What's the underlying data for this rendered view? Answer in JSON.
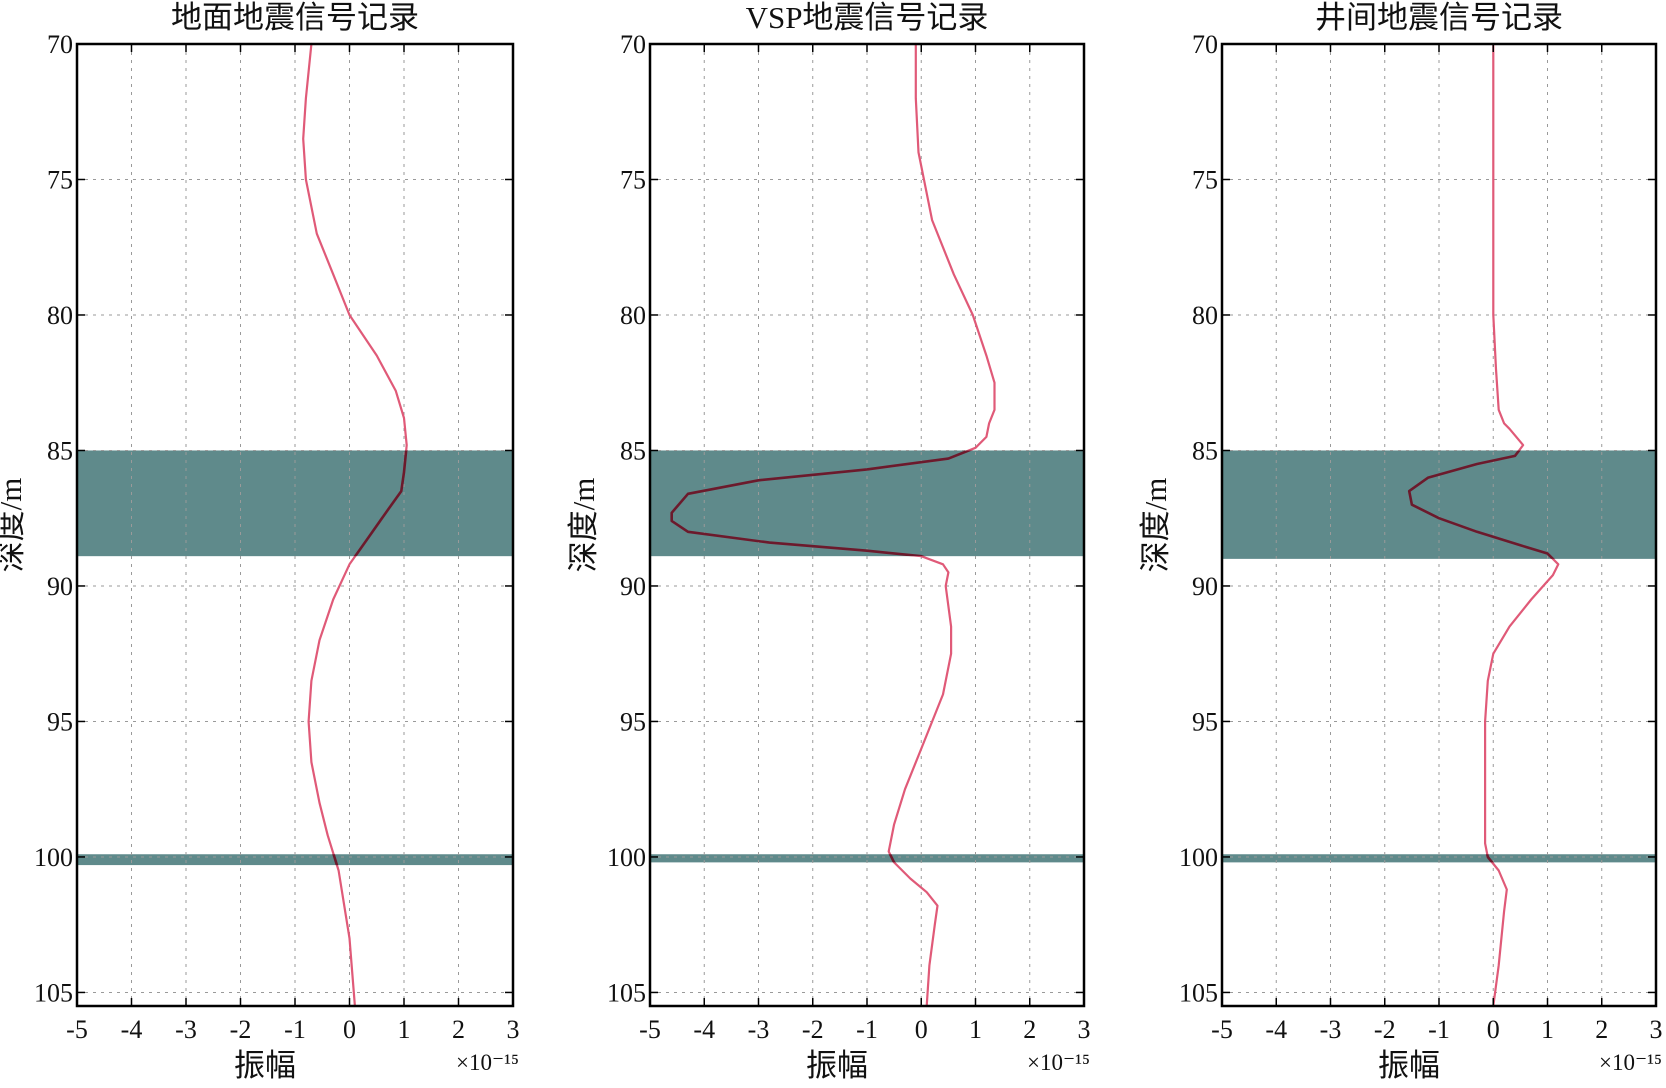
{
  "chart_data": [
    {
      "type": "line",
      "title": "地面地震信号记录",
      "xlabel": "振幅",
      "ylabel": "深度/m",
      "x_exponent_label": "×10⁻¹⁵",
      "xlim": [
        -5,
        3
      ],
      "ylim": [
        70,
        105.5
      ],
      "y_inverted": true,
      "xticks": [
        "-5",
        "-4",
        "-3",
        "-2",
        "-1",
        "0",
        "1",
        "2",
        "3"
      ],
      "yticks": [
        "70",
        "75",
        "80",
        "85",
        "90",
        "95",
        "100",
        "105"
      ],
      "grid": true,
      "shaded_bands": [
        {
          "from": 85.0,
          "to": 88.9
        },
        {
          "from": 99.9,
          "to": 100.3
        }
      ],
      "series": [
        {
          "x": [
            -0.7,
            -0.8,
            -0.85,
            -0.8,
            -0.6,
            -0.3,
            0.0,
            0.5,
            0.85,
            1.0,
            1.05,
            1.0,
            0.95,
            0.7,
            0.35,
            0.0,
            -0.3,
            -0.55,
            -0.7,
            -0.75,
            -0.7,
            -0.55,
            -0.4,
            -0.2,
            0.0,
            0.1
          ],
          "y": [
            70,
            72,
            73.5,
            75,
            77,
            78.5,
            80,
            81.5,
            82.8,
            83.8,
            84.8,
            85.8,
            86.5,
            87.2,
            88.2,
            89.2,
            90.5,
            92,
            93.5,
            95,
            96.5,
            98,
            99.2,
            100.5,
            103,
            105.5
          ]
        }
      ]
    },
    {
      "type": "line",
      "title": "VSP地震信号记录",
      "xlabel": "振幅",
      "ylabel": "深度/m",
      "x_exponent_label": "×10⁻¹⁵",
      "xlim": [
        -5,
        3
      ],
      "ylim": [
        70,
        105.5
      ],
      "y_inverted": true,
      "xticks": [
        "-5",
        "-4",
        "-3",
        "-2",
        "-1",
        "0",
        "1",
        "2",
        "3"
      ],
      "yticks": [
        "70",
        "75",
        "80",
        "85",
        "90",
        "95",
        "100",
        "105"
      ],
      "grid": true,
      "shaded_bands": [
        {
          "from": 85.0,
          "to": 88.9
        },
        {
          "from": 99.9,
          "to": 100.2
        }
      ],
      "series": [
        {
          "x": [
            -0.1,
            -0.1,
            -0.05,
            0.2,
            0.6,
            0.95,
            1.2,
            1.35,
            1.35,
            1.25,
            1.2,
            1.0,
            0.5,
            -1.0,
            -3.0,
            -4.3,
            -4.6,
            -4.6,
            -4.3,
            -2.8,
            -1.0,
            0.0,
            0.4,
            0.5,
            0.45,
            0.55,
            0.55,
            0.4,
            0.0,
            -0.3,
            -0.5,
            -0.6,
            -0.5,
            -0.2,
            0.1,
            0.3,
            0.25,
            0.15,
            0.1
          ],
          "y": [
            70,
            72,
            74,
            76.5,
            78.5,
            80,
            81.5,
            82.5,
            83.5,
            84.0,
            84.5,
            84.9,
            85.3,
            85.7,
            86.1,
            86.6,
            87.3,
            87.6,
            88.0,
            88.4,
            88.7,
            88.9,
            89.2,
            89.5,
            90.0,
            91.5,
            92.5,
            94.0,
            96.0,
            97.5,
            98.8,
            99.8,
            100.2,
            100.8,
            101.3,
            101.8,
            102.5,
            104.0,
            105.5
          ]
        }
      ]
    },
    {
      "type": "line",
      "title": "井间地震信号记录",
      "xlabel": "振幅",
      "ylabel": "深度/m",
      "x_exponent_label": "×10⁻¹⁵",
      "xlim": [
        -5,
        3
      ],
      "ylim": [
        70,
        105.5
      ],
      "y_inverted": true,
      "xticks": [
        "-5",
        "-4",
        "-3",
        "-2",
        "-1",
        "0",
        "1",
        "2",
        "3"
      ],
      "yticks": [
        "70",
        "75",
        "80",
        "85",
        "90",
        "95",
        "100",
        "105"
      ],
      "grid": true,
      "shaded_bands": [
        {
          "from": 85.0,
          "to": 89.0
        },
        {
          "from": 99.9,
          "to": 100.2
        }
      ],
      "series": [
        {
          "x": [
            0.0,
            0.0,
            0.0,
            0.05,
            0.1,
            0.2,
            0.3,
            0.55,
            0.4,
            -0.3,
            -1.2,
            -1.55,
            -1.5,
            -1.0,
            -0.3,
            0.5,
            1.0,
            1.2,
            1.1,
            0.7,
            0.3,
            0.0,
            -0.1,
            -0.15,
            -0.15,
            -0.15,
            -0.1,
            0.1,
            0.25,
            0.2,
            0.1,
            0.0
          ],
          "y": [
            70,
            75,
            80,
            82,
            83.5,
            84.0,
            84.2,
            84.8,
            85.2,
            85.5,
            86.0,
            86.5,
            87.0,
            87.5,
            88.0,
            88.5,
            88.8,
            89.2,
            89.6,
            90.5,
            91.5,
            92.5,
            93.5,
            95.0,
            97.0,
            99.5,
            100.0,
            100.5,
            101.2,
            102.0,
            104.0,
            105.5
          ]
        }
      ]
    }
  ],
  "colors": {
    "band": "#5f8a8b",
    "trace_outside": "#e05a78",
    "trace_inside": "#6b1a2c",
    "frame": "#000000",
    "grid": "#9a9a9a"
  }
}
